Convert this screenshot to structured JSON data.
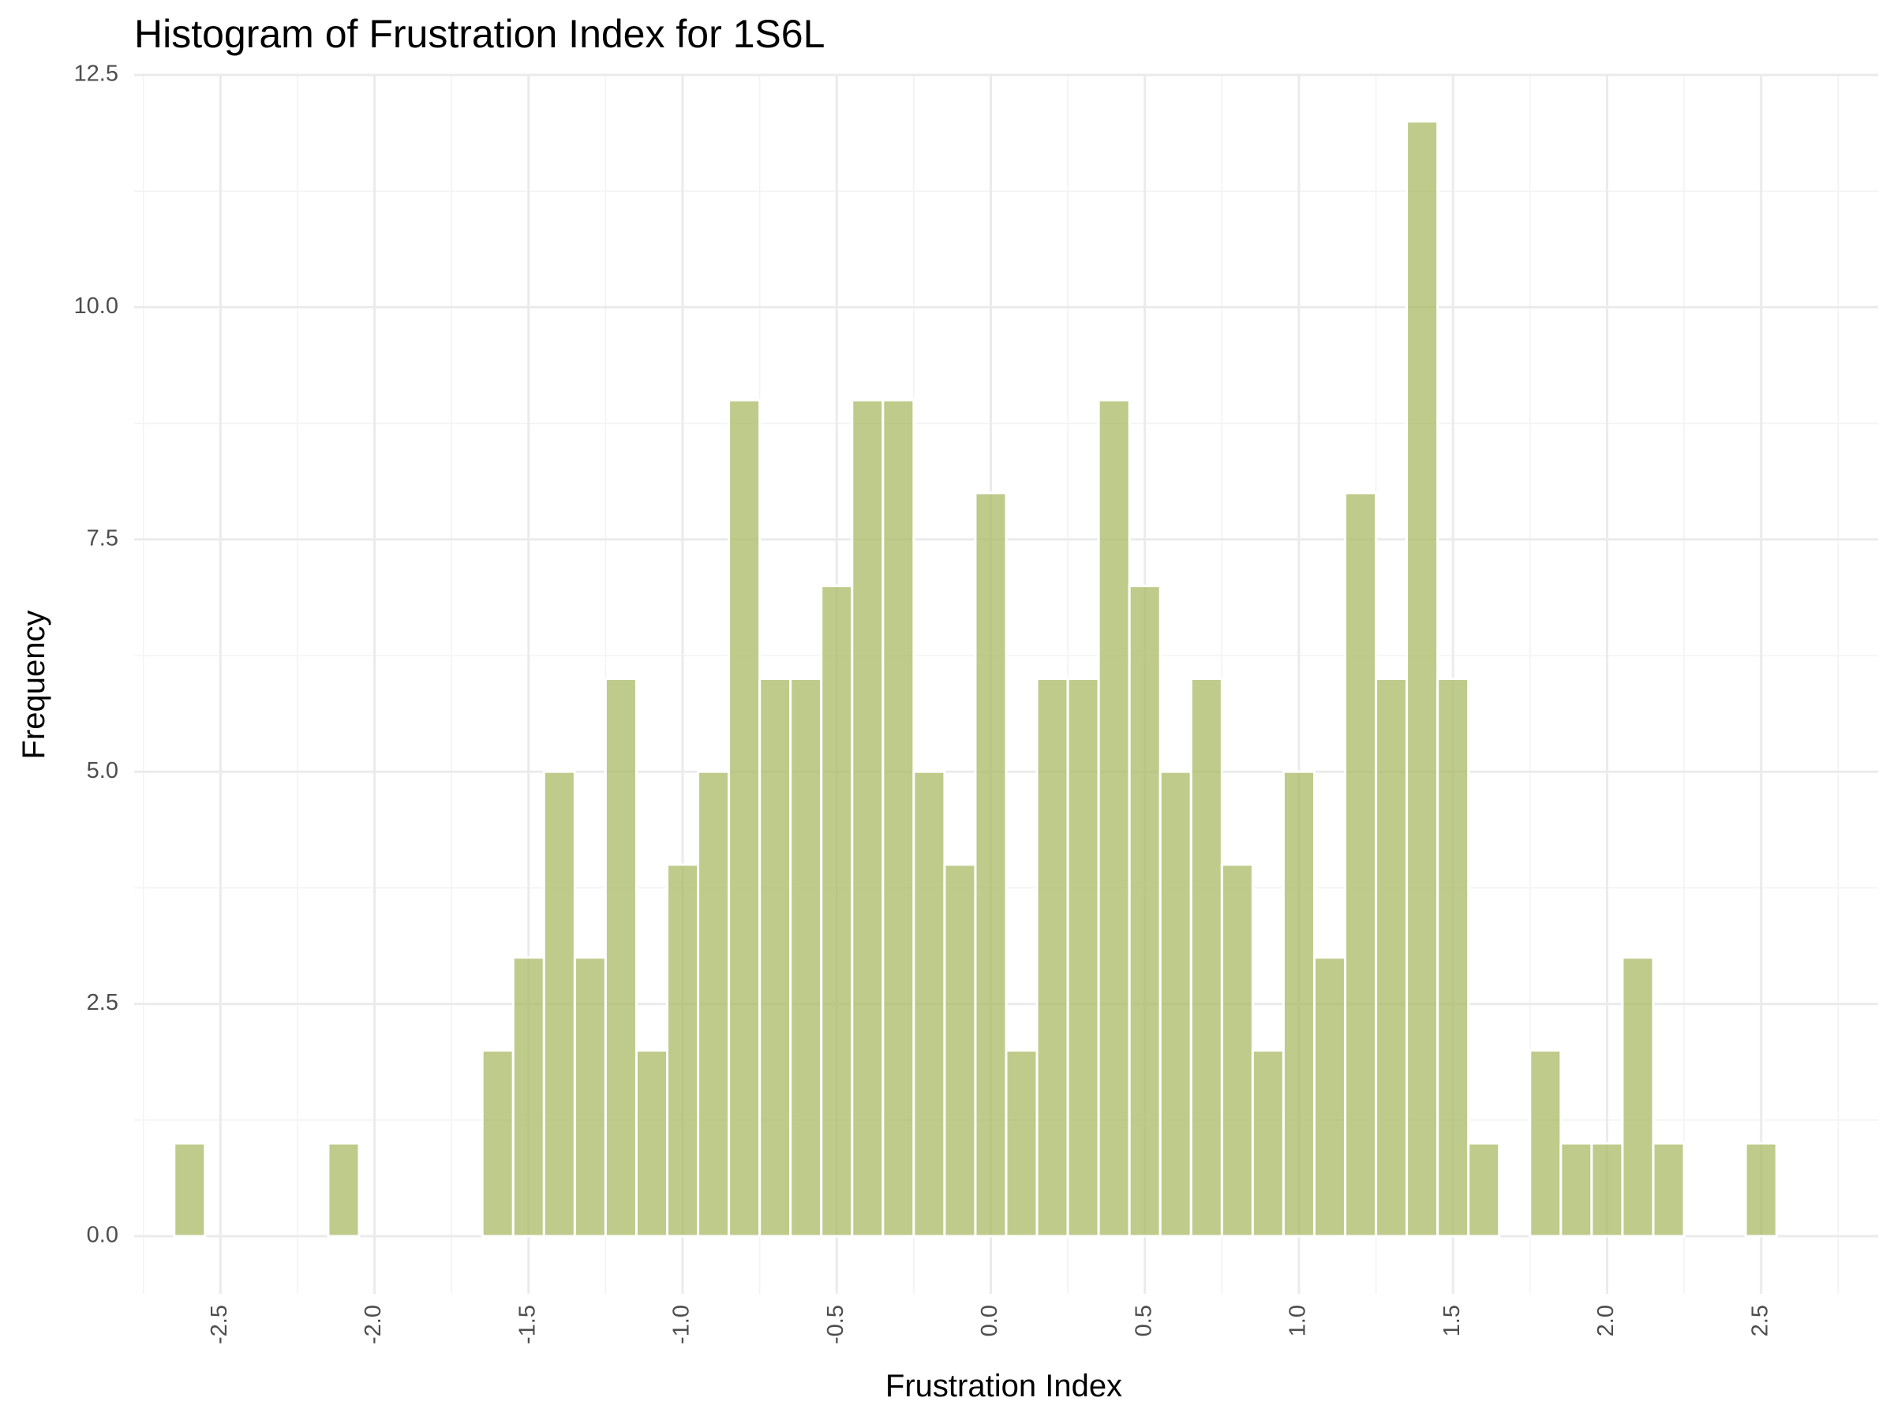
{
  "chart_data": {
    "type": "bar",
    "title": "Histogram of Frustration Index for 1S6L",
    "xlabel": "Frustration Index",
    "ylabel": "Frequency",
    "bin_width": 0.1,
    "bin_centers": [
      -2.6,
      -2.5,
      -2.4,
      -2.3,
      -2.2,
      -2.1,
      -2.0,
      -1.9,
      -1.8,
      -1.7,
      -1.6,
      -1.5,
      -1.4,
      -1.3,
      -1.2,
      -1.1,
      -1.0,
      -0.9,
      -0.8,
      -0.7,
      -0.6,
      -0.5,
      -0.4,
      -0.3,
      -0.2,
      -0.1,
      0.0,
      0.1,
      0.2,
      0.3,
      0.4,
      0.5,
      0.6,
      0.7,
      0.8,
      0.9,
      1.0,
      1.1,
      1.2,
      1.3,
      1.4,
      1.5,
      1.6,
      1.7,
      1.8,
      1.9,
      2.0,
      2.1,
      2.2,
      2.3,
      2.4,
      2.5
    ],
    "values": [
      1,
      0,
      0,
      0,
      0,
      1,
      0,
      0,
      0,
      0,
      2,
      3,
      5,
      3,
      6,
      2,
      4,
      5,
      9,
      6,
      6,
      7,
      9,
      9,
      5,
      4,
      8,
      2,
      6,
      6,
      9,
      7,
      5,
      6,
      4,
      2,
      5,
      3,
      8,
      6,
      12,
      6,
      1,
      0,
      2,
      1,
      1,
      3,
      1,
      0,
      0,
      1
    ],
    "xlim": [
      -2.78,
      2.88
    ],
    "ylim": [
      -0.62,
      12.5
    ],
    "x_ticks": [
      -2.5,
      -2.0,
      -1.5,
      -1.0,
      -0.5,
      0.0,
      0.5,
      1.0,
      1.5,
      2.0,
      2.5
    ],
    "x_tick_labels": [
      "-2.5",
      "-2.0",
      "-1.5",
      "-1.0",
      "-0.5",
      "0.0",
      "0.5",
      "1.0",
      "1.5",
      "2.0",
      "2.5"
    ],
    "y_ticks": [
      0,
      2.5,
      5.0,
      7.5,
      10.0,
      12.5
    ],
    "y_tick_labels": [
      "0.0",
      "2.5",
      "5.0",
      "7.5",
      "10.0",
      "12.5"
    ],
    "bar_color": "#a8b964",
    "bar_edge_color": "#ffffff",
    "grid": true
  }
}
